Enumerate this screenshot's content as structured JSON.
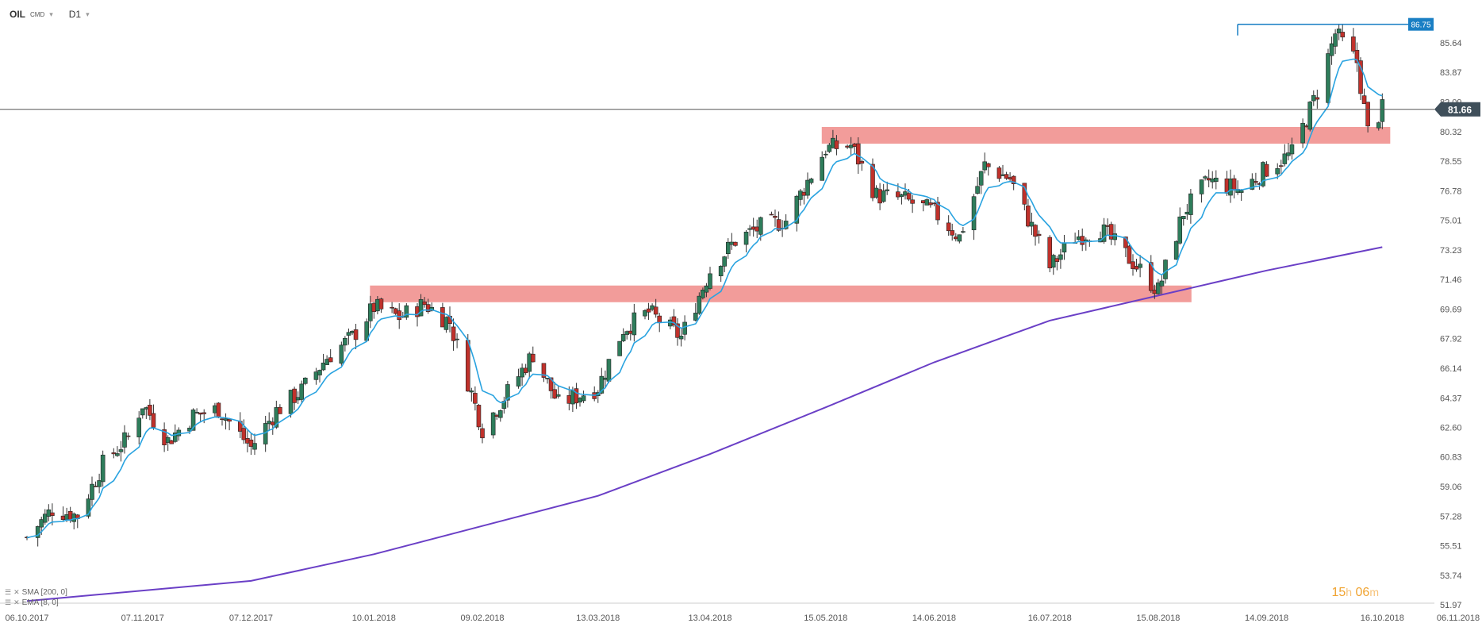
{
  "header": {
    "symbol": "OIL",
    "category": "CMD",
    "interval": "D1"
  },
  "indicators": [
    {
      "label": "SMA [200, 0]"
    },
    {
      "label": "EMA [8, 0]"
    }
  ],
  "timer": {
    "hours": "15",
    "h_unit": "h",
    "minutes": "06",
    "m_unit": "m"
  },
  "colors": {
    "up_candle": "#2e7d5b",
    "down_candle": "#c0312b",
    "ema": "#29a3e0",
    "sma": "#6a3fc6",
    "zone": "#f08b88",
    "current_price_label": "#3f4f5a",
    "high_price_label": "#1a7fc4"
  },
  "chart_data": {
    "type": "candlestick",
    "title": "OIL D1",
    "y_axis": {
      "ticks": [
        "85.64",
        "83.87",
        "82.09",
        "80.32",
        "78.55",
        "76.78",
        "75.01",
        "73.23",
        "71.46",
        "69.69",
        "67.92",
        "66.14",
        "64.37",
        "62.60",
        "60.83",
        "59.06",
        "57.28",
        "55.51",
        "53.74",
        "51.97"
      ],
      "range": [
        51.97,
        87.0
      ]
    },
    "x_axis": {
      "ticks": [
        "06.10.2017",
        "07.11.2017",
        "07.12.2017",
        "10.01.2018",
        "09.02.2018",
        "13.03.2018",
        "13.04.2018",
        "15.05.2018",
        "14.06.2018",
        "16.07.2018",
        "15.08.2018",
        "14.09.2018",
        "16.10.2018",
        "06.11.2018"
      ],
      "range": [
        "06.10.2017",
        "06.11.2018"
      ]
    },
    "current_price": "81.66",
    "high_marker": "86.75",
    "close_path": [
      {
        "date": "06.10.2017",
        "close": 56.0
      },
      {
        "date": "13.10.2017",
        "close": 57.7
      },
      {
        "date": "20.10.2017",
        "close": 57.3
      },
      {
        "date": "27.10.2017",
        "close": 60.4
      },
      {
        "date": "03.11.2017",
        "close": 62.0
      },
      {
        "date": "07.11.2017",
        "close": 64.0
      },
      {
        "date": "14.11.2017",
        "close": 61.8
      },
      {
        "date": "21.11.2017",
        "close": 63.3
      },
      {
        "date": "28.11.2017",
        "close": 63.7
      },
      {
        "date": "07.12.2017",
        "close": 61.4
      },
      {
        "date": "14.12.2017",
        "close": 63.6
      },
      {
        "date": "21.12.2017",
        "close": 64.8
      },
      {
        "date": "28.12.2017",
        "close": 66.8
      },
      {
        "date": "04.01.2018",
        "close": 68.0
      },
      {
        "date": "10.01.2018",
        "close": 69.8
      },
      {
        "date": "17.01.2018",
        "close": 69.2
      },
      {
        "date": "24.01.2018",
        "close": 70.0
      },
      {
        "date": "31.01.2018",
        "close": 68.9
      },
      {
        "date": "09.02.2018",
        "close": 62.5
      },
      {
        "date": "16.02.2018",
        "close": 64.7
      },
      {
        "date": "23.02.2018",
        "close": 67.0
      },
      {
        "date": "02.03.2018",
        "close": 64.0
      },
      {
        "date": "13.03.2018",
        "close": 65.0
      },
      {
        "date": "20.03.2018",
        "close": 68.5
      },
      {
        "date": "27.03.2018",
        "close": 69.5
      },
      {
        "date": "05.04.2018",
        "close": 68.0
      },
      {
        "date": "13.04.2018",
        "close": 72.0
      },
      {
        "date": "20.04.2018",
        "close": 73.8
      },
      {
        "date": "27.04.2018",
        "close": 74.6
      },
      {
        "date": "04.05.2018",
        "close": 75.0
      },
      {
        "date": "15.05.2018",
        "close": 79.3
      },
      {
        "date": "22.05.2018",
        "close": 79.5
      },
      {
        "date": "29.05.2018",
        "close": 76.5
      },
      {
        "date": "05.06.2018",
        "close": 76.3
      },
      {
        "date": "14.06.2018",
        "close": 75.5
      },
      {
        "date": "21.06.2018",
        "close": 74.0
      },
      {
        "date": "28.06.2018",
        "close": 78.3
      },
      {
        "date": "05.07.2018",
        "close": 77.5
      },
      {
        "date": "16.07.2018",
        "close": 72.2
      },
      {
        "date": "23.07.2018",
        "close": 74.0
      },
      {
        "date": "30.07.2018",
        "close": 74.5
      },
      {
        "date": "08.08.2018",
        "close": 72.5
      },
      {
        "date": "15.08.2018",
        "close": 70.8
      },
      {
        "date": "22.08.2018",
        "close": 75.5
      },
      {
        "date": "29.08.2018",
        "close": 77.4
      },
      {
        "date": "07.09.2018",
        "close": 76.8
      },
      {
        "date": "14.09.2018",
        "close": 78.1
      },
      {
        "date": "21.09.2018",
        "close": 79.0
      },
      {
        "date": "28.09.2018",
        "close": 82.7
      },
      {
        "date": "03.10.2018",
        "close": 86.2
      },
      {
        "date": "09.10.2018",
        "close": 84.5
      },
      {
        "date": "12.10.2018",
        "close": 80.3
      },
      {
        "date": "16.10.2018",
        "close": 81.66
      }
    ],
    "sma200_path": [
      {
        "date": "06.10.2017",
        "value": 52.2
      },
      {
        "date": "07.12.2017",
        "value": 53.4
      },
      {
        "date": "10.01.2018",
        "value": 55.0
      },
      {
        "date": "13.03.2018",
        "value": 58.5
      },
      {
        "date": "13.04.2018",
        "value": 61.0
      },
      {
        "date": "15.05.2018",
        "value": 63.8
      },
      {
        "date": "14.06.2018",
        "value": 66.5
      },
      {
        "date": "16.07.2018",
        "value": 69.0
      },
      {
        "date": "15.08.2018",
        "value": 70.5
      },
      {
        "date": "14.09.2018",
        "value": 72.0
      },
      {
        "date": "16.10.2018",
        "value": 73.4
      }
    ],
    "resistance_zones": [
      {
        "from": "15.05.2018",
        "to": "16.10.2018",
        "low": 79.6,
        "high": 80.6
      },
      {
        "from": "10.01.2018",
        "to": "22.08.2018",
        "low": 70.1,
        "high": 71.1
      }
    ],
    "grid": false,
    "legend": "bottom-left"
  }
}
